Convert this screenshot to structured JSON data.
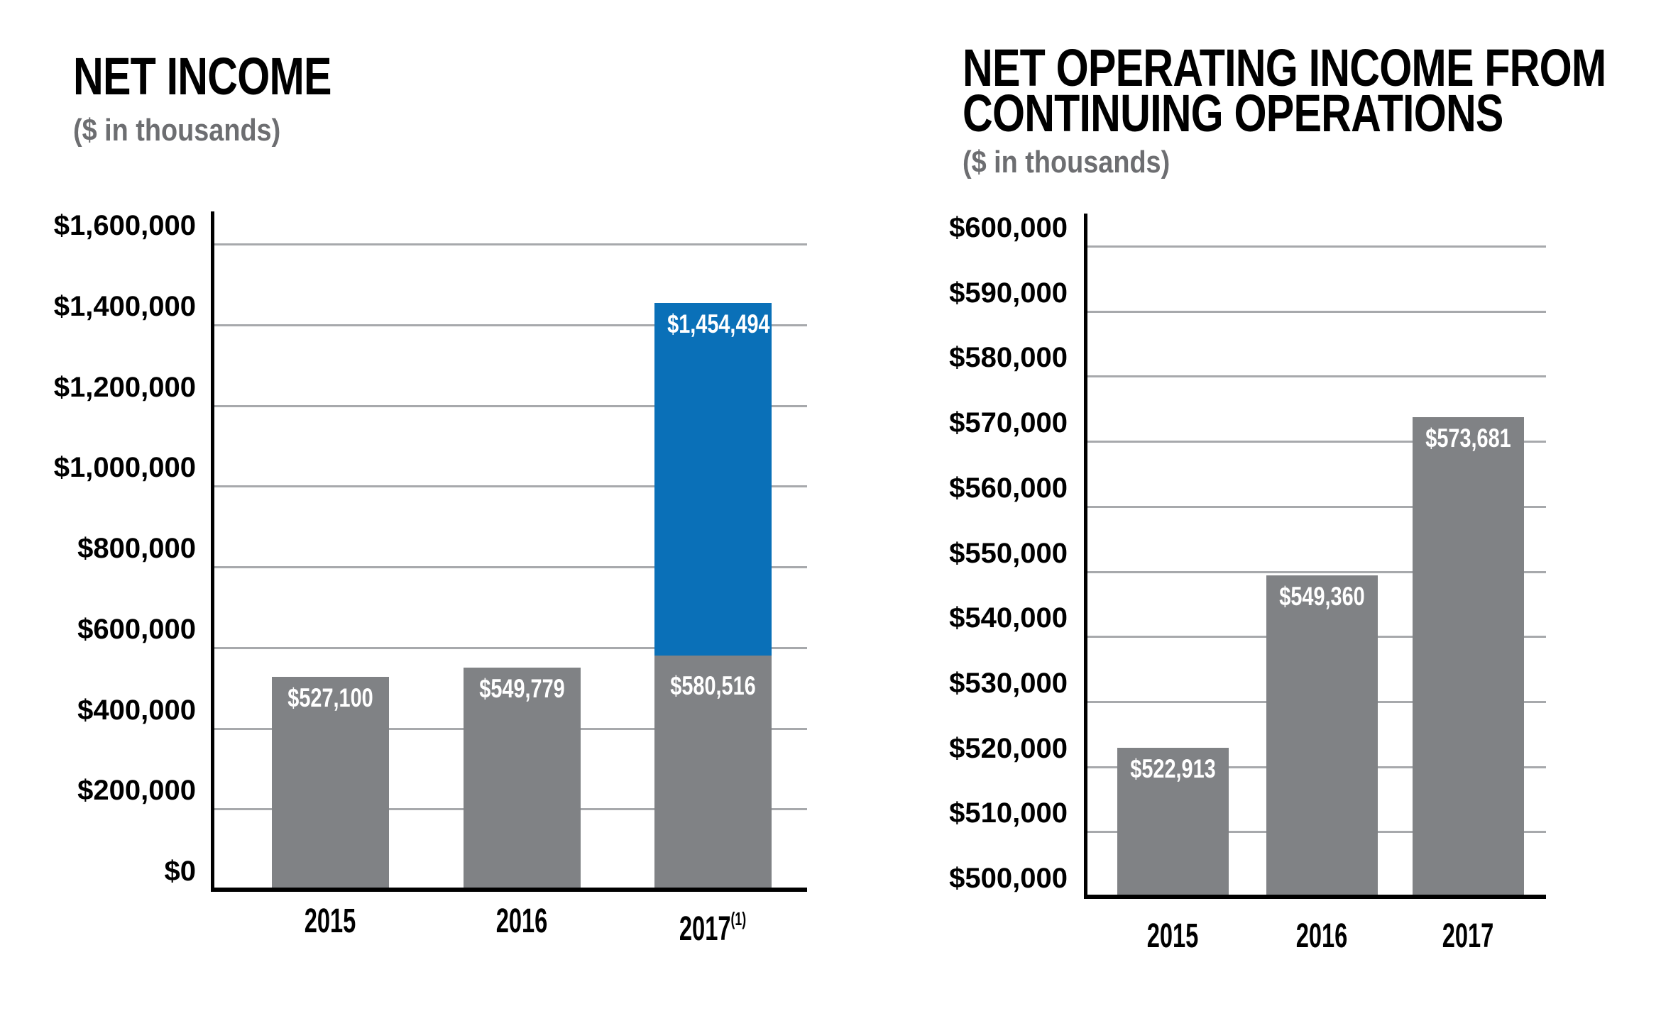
{
  "canvas": {
    "background": "#FFFFFF"
  },
  "colors": {
    "bar_gray": "#808285",
    "bar_blue": "#0A70B8",
    "gridline": "#A7A9AC",
    "axis": "#000000",
    "title_text": "#000000",
    "subtitle_text": "#6D6E71",
    "tick_text": "#000000",
    "bar_value_text": "#FFFFFF"
  },
  "chart_data": [
    {
      "type": "bar",
      "title": "NET INCOME",
      "title_lines": [
        "NET INCOME"
      ],
      "subtitle": "($ in thousands)",
      "xlabel": "",
      "ylabel": "",
      "grid": true,
      "legend_position": "none",
      "categories": [
        "2015",
        "2016",
        "2017"
      ],
      "category_superscripts": [
        "",
        "",
        "(1)"
      ],
      "y_axis": {
        "min": 0,
        "max": 1600000,
        "step": 200000,
        "tick_labels": [
          "$1,600,000",
          "$1,400,000",
          "$1,200,000",
          "$1,000,000",
          "$800,000",
          "$600,000",
          "$400,000",
          "$200,000",
          "$0"
        ]
      },
      "bars": [
        {
          "category": "2015",
          "total": 527100,
          "segments": [
            {
              "from": 0,
              "to": 527100,
              "color_key": "bar_gray",
              "label": "$527,100"
            }
          ]
        },
        {
          "category": "2016",
          "total": 549779,
          "segments": [
            {
              "from": 0,
              "to": 549779,
              "color_key": "bar_gray",
              "label": "$549,779"
            }
          ]
        },
        {
          "category": "2017",
          "total": 1454494,
          "segments": [
            {
              "from": 0,
              "to": 580516,
              "color_key": "bar_gray",
              "label": "$580,516"
            },
            {
              "from": 580516,
              "to": 1454494,
              "color_key": "bar_blue",
              "label": "$1,454,494"
            }
          ]
        }
      ]
    },
    {
      "type": "bar",
      "title": "NET OPERATING INCOME FROM CONTINUING OPERATIONS",
      "title_lines": [
        "NET OPERATING INCOME FROM",
        "CONTINUING OPERATIONS"
      ],
      "subtitle": "($ in thousands)",
      "xlabel": "",
      "ylabel": "",
      "grid": true,
      "legend_position": "none",
      "categories": [
        "2015",
        "2016",
        "2017"
      ],
      "category_superscripts": [
        "",
        "",
        ""
      ],
      "y_axis": {
        "min": 500000,
        "max": 600000,
        "step": 10000,
        "tick_labels": [
          "$600,000",
          "$590,000",
          "$580,000",
          "$570,000",
          "$560,000",
          "$550,000",
          "$540,000",
          "$530,000",
          "$520,000",
          "$510,000",
          "$500,000"
        ]
      },
      "bars": [
        {
          "category": "2015",
          "total": 522913,
          "segments": [
            {
              "from": 500000,
              "to": 522913,
              "color_key": "bar_gray",
              "label": "$522,913"
            }
          ]
        },
        {
          "category": "2016",
          "total": 549360,
          "segments": [
            {
              "from": 500000,
              "to": 549360,
              "color_key": "bar_gray",
              "label": "$549,360"
            }
          ]
        },
        {
          "category": "2017",
          "total": 573681,
          "segments": [
            {
              "from": 500000,
              "to": 573681,
              "color_key": "bar_gray",
              "label": "$573,681"
            }
          ]
        }
      ]
    }
  ]
}
